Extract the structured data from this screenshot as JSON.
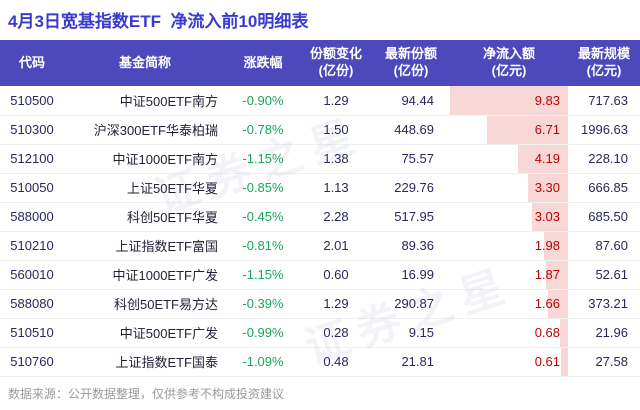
{
  "page": {
    "title": "4月3日宽基指数ETF  净流入前10明细表",
    "footer": "数据来源：公开数据整理，仅供参考不构成投资建议",
    "watermark": "证券之星"
  },
  "colors": {
    "title": "#3a3ad0",
    "header_bg": "#4b49bc",
    "header_text": "#ffffff",
    "change_green": "#17a65a",
    "inflow_red": "#c00000",
    "databar_pink": "#f8d7d7"
  },
  "table": {
    "headers": [
      "代码",
      "基金简称",
      "涨跌幅",
      "份额变化\n(亿份)",
      "最新份额\n(亿份)",
      "净流入额\n(亿元)",
      "最新规模\n(亿元)"
    ],
    "rows": [
      {
        "code": "510500",
        "name": "中证500ETF南方",
        "change": "-0.90%",
        "share_change": "1.29",
        "latest_share": "94.44",
        "inflow": "9.83",
        "scale": "717.63"
      },
      {
        "code": "510300",
        "name": "沪深300ETF华泰柏瑞",
        "change": "-0.78%",
        "share_change": "1.50",
        "latest_share": "448.69",
        "inflow": "6.71",
        "scale": "1996.63"
      },
      {
        "code": "512100",
        "name": "中证1000ETF南方",
        "change": "-1.15%",
        "share_change": "1.38",
        "latest_share": "75.57",
        "inflow": "4.19",
        "scale": "228.10"
      },
      {
        "code": "510050",
        "name": "上证50ETF华夏",
        "change": "-0.85%",
        "share_change": "1.13",
        "latest_share": "229.76",
        "inflow": "3.30",
        "scale": "666.85"
      },
      {
        "code": "588000",
        "name": "科创50ETF华夏",
        "change": "-0.45%",
        "share_change": "2.28",
        "latest_share": "517.95",
        "inflow": "3.03",
        "scale": "685.50"
      },
      {
        "code": "510210",
        "name": "上证指数ETF富国",
        "change": "-0.81%",
        "share_change": "2.01",
        "latest_share": "89.36",
        "inflow": "1.98",
        "scale": "87.60"
      },
      {
        "code": "560010",
        "name": "中证1000ETF广发",
        "change": "-1.15%",
        "share_change": "0.60",
        "latest_share": "16.99",
        "inflow": "1.87",
        "scale": "52.61"
      },
      {
        "code": "588080",
        "name": "科创50ETF易方达",
        "change": "-0.39%",
        "share_change": "1.29",
        "latest_share": "290.87",
        "inflow": "1.66",
        "scale": "373.21"
      },
      {
        "code": "510510",
        "name": "中证500ETF广发",
        "change": "-0.99%",
        "share_change": "0.28",
        "latest_share": "9.15",
        "inflow": "0.68",
        "scale": "21.96"
      },
      {
        "code": "510760",
        "name": "上证指数ETF国泰",
        "change": "-1.09%",
        "share_change": "0.48",
        "latest_share": "21.81",
        "inflow": "0.61",
        "scale": "27.58"
      }
    ]
  },
  "chart_data": {
    "type": "table",
    "title": "4月3日宽基指数ETF 净流入前10明细表",
    "columns": [
      "代码",
      "基金简称",
      "涨跌幅",
      "份额变化(亿份)",
      "最新份额(亿份)",
      "净流入额(亿元)",
      "最新规模(亿元)"
    ],
    "rows": [
      [
        "510500",
        "中证500ETF南方",
        "-0.90%",
        1.29,
        94.44,
        9.83,
        717.63
      ],
      [
        "510300",
        "沪深300ETF华泰柏瑞",
        "-0.78%",
        1.5,
        448.69,
        6.71,
        1996.63
      ],
      [
        "512100",
        "中证1000ETF南方",
        "-1.15%",
        1.38,
        75.57,
        4.19,
        228.1
      ],
      [
        "510050",
        "上证50ETF华夏",
        "-0.85%",
        1.13,
        229.76,
        3.3,
        666.85
      ],
      [
        "588000",
        "科创50ETF华夏",
        "-0.45%",
        2.28,
        517.95,
        3.03,
        685.5
      ],
      [
        "510210",
        "上证指数ETF富国",
        "-0.81%",
        2.01,
        89.36,
        1.98,
        87.6
      ],
      [
        "560010",
        "中证1000ETF广发",
        "-1.15%",
        0.6,
        16.99,
        1.87,
        52.61
      ],
      [
        "588080",
        "科创50ETF易方达",
        "-0.39%",
        1.29,
        290.87,
        1.66,
        373.21
      ],
      [
        "510510",
        "中证500ETF广发",
        "-0.99%",
        0.28,
        9.15,
        0.68,
        21.96
      ],
      [
        "510760",
        "上证指数ETF国泰",
        "-1.09%",
        0.48,
        21.81,
        0.61,
        27.58
      ]
    ],
    "notes": "净流入额 column has right-anchored pink data bars proportional to value; max 9.83 = full width",
    "legend_position": "none",
    "grid": false
  }
}
